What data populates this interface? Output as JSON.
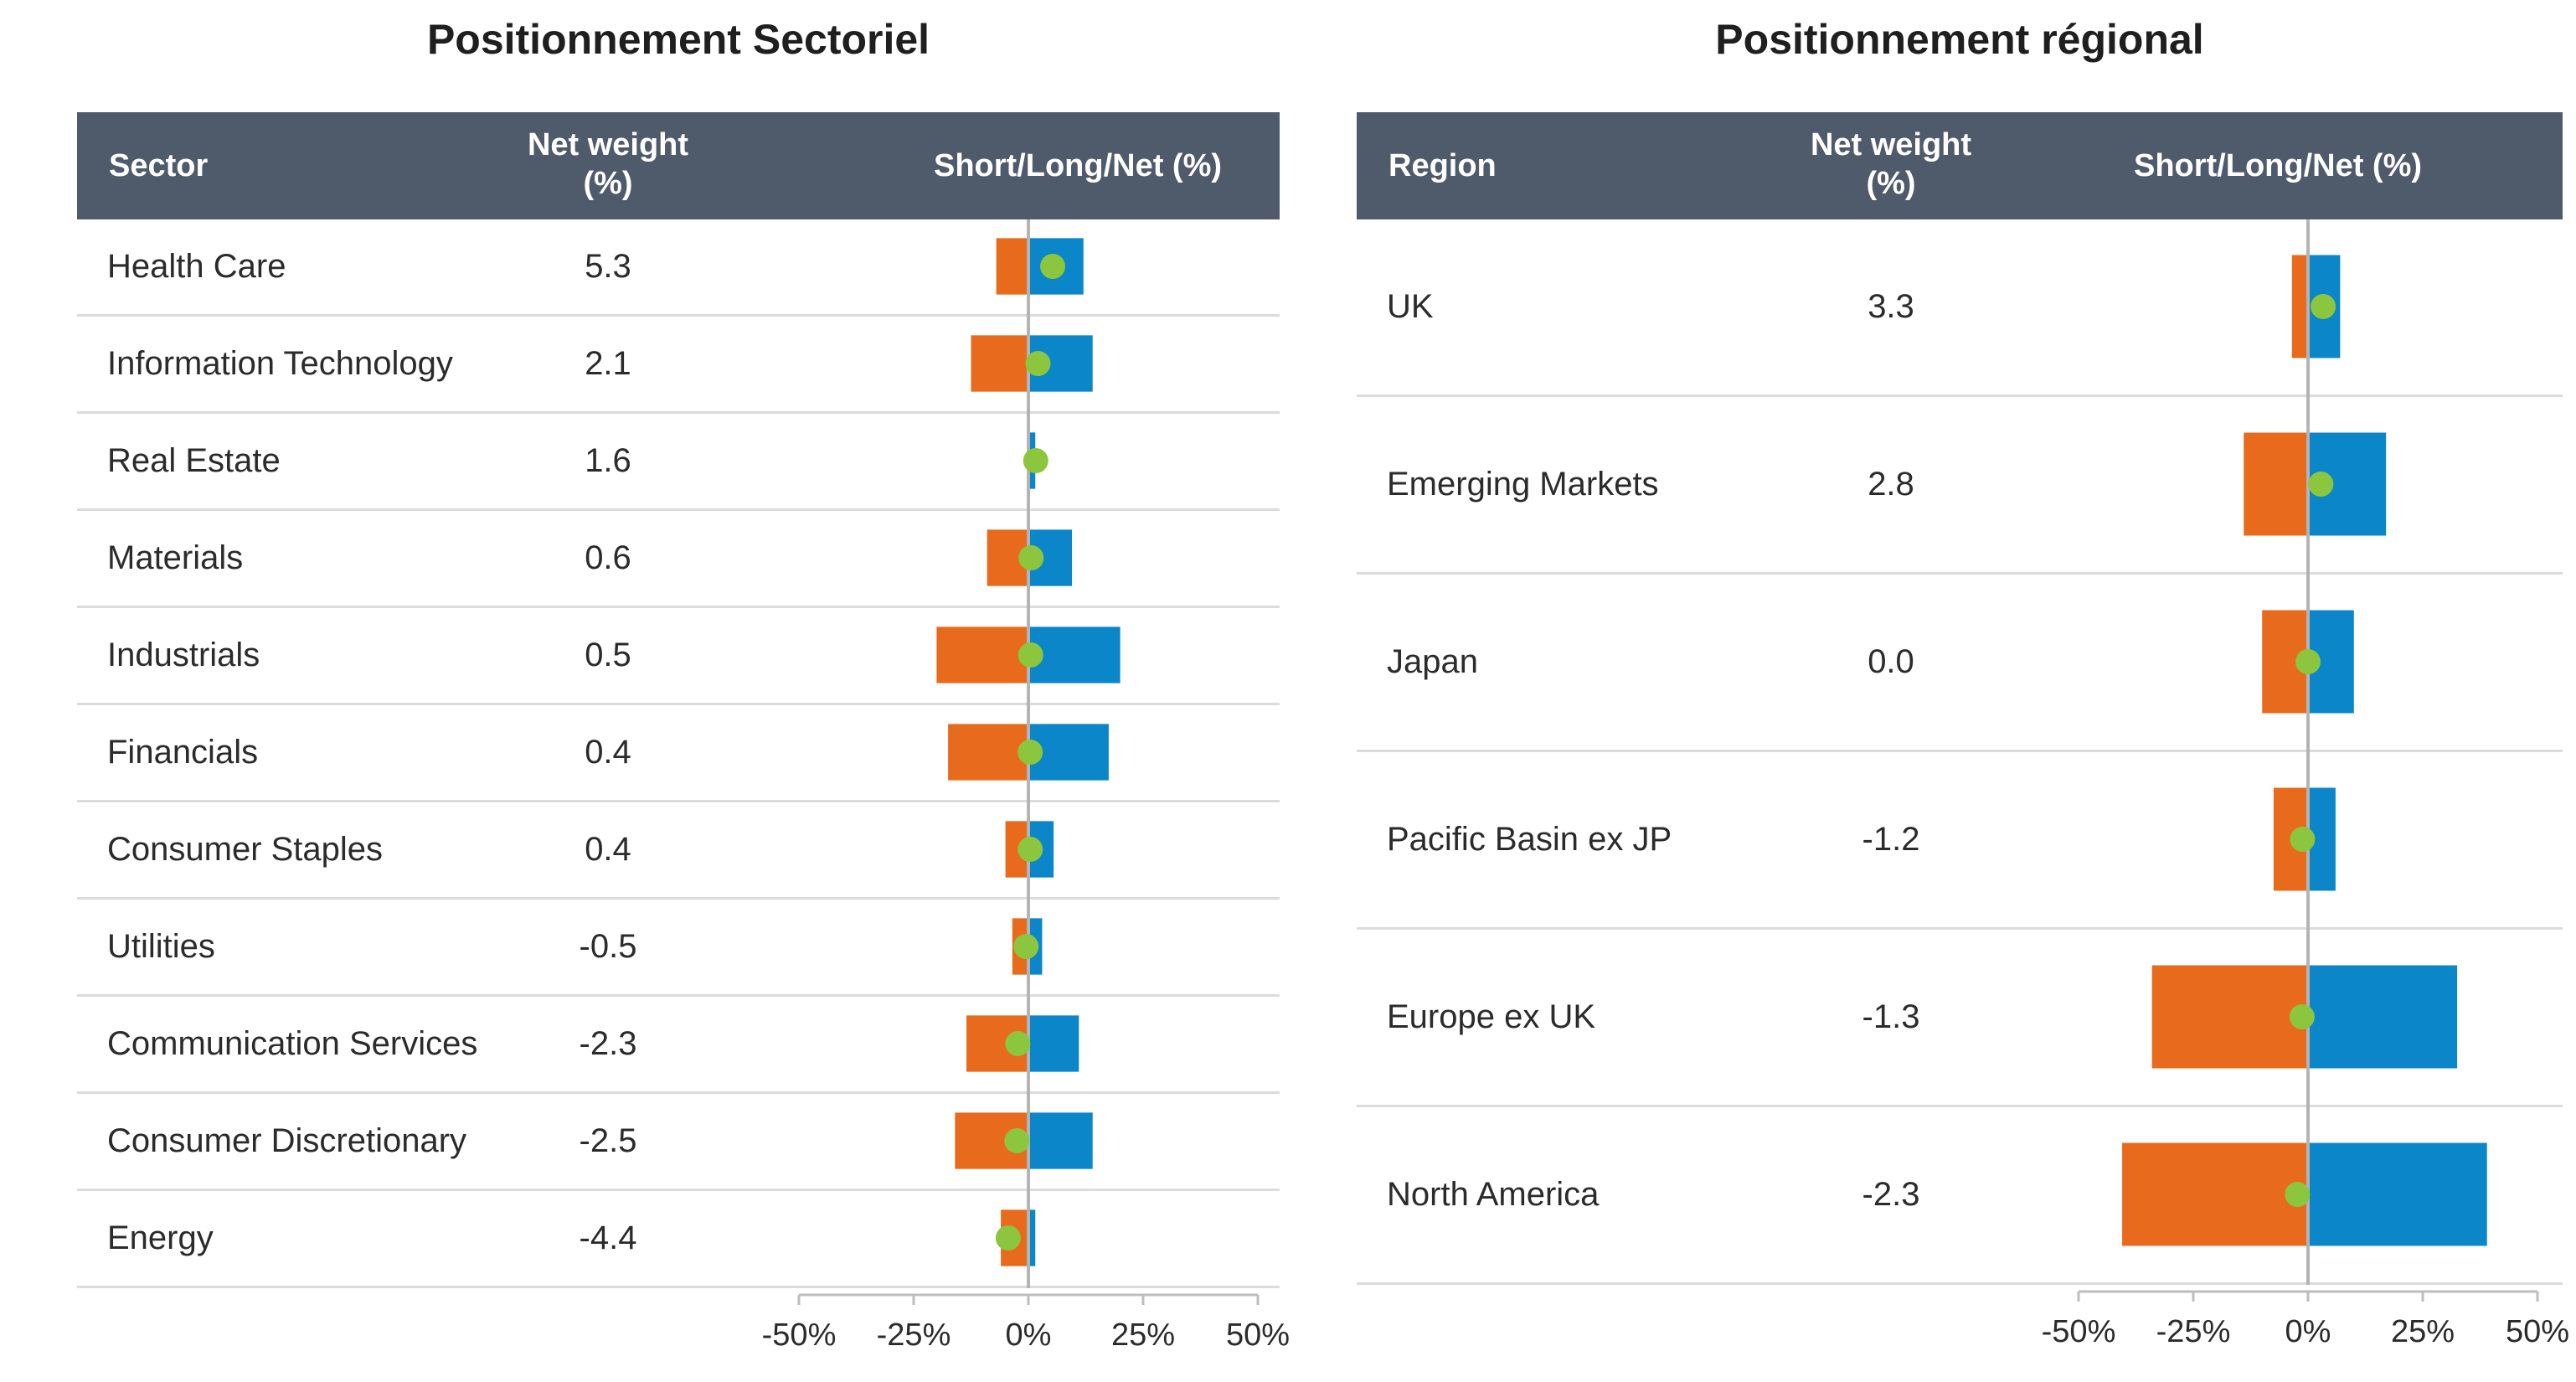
{
  "chart_data": [
    {
      "type": "bar",
      "title": "Positionnement Sectoriel",
      "columns": {
        "label": "Sector",
        "weight": "Net weight (%)",
        "chart": "Short/Long/Net (%)"
      },
      "weight_line1": "Net weight",
      "weight_line2": "(%)",
      "xlim": [
        -50,
        50
      ],
      "xticks": [
        -50,
        -25,
        0,
        25,
        50
      ],
      "xtick_labels": [
        "-50%",
        "-25%",
        "0%",
        "25%",
        "50%"
      ],
      "legend_series": [
        "Short",
        "Long",
        "Net"
      ],
      "colors": {
        "short": "#e86a1c",
        "long": "#0b86c9",
        "net": "#8cc63f"
      },
      "categories": [
        "Health Care",
        "Information Technology",
        "Real Estate",
        "Materials",
        "Industrials",
        "Financials",
        "Consumer Staples",
        "Utilities",
        "Communication Services",
        "Consumer Discretionary",
        "Energy"
      ],
      "net_weight_labels": [
        "5.3",
        "2.1",
        "1.6",
        "0.6",
        "0.5",
        "0.4",
        "0.4",
        "-0.5",
        "-2.3",
        "-2.5",
        "-4.4"
      ],
      "series": [
        {
          "name": "Short",
          "values": [
            -7,
            -12.5,
            0,
            -9,
            -20,
            -17.5,
            -5,
            -3.5,
            -13.5,
            -16,
            -6
          ]
        },
        {
          "name": "Long",
          "values": [
            12,
            14,
            1.5,
            9.5,
            20,
            17.5,
            5.5,
            3,
            11,
            14,
            1.5
          ]
        },
        {
          "name": "Net",
          "values": [
            5.3,
            2.1,
            1.6,
            0.6,
            0.5,
            0.4,
            0.4,
            -0.5,
            -2.3,
            -2.5,
            -4.4
          ]
        }
      ]
    },
    {
      "type": "bar",
      "title": "Positionnement régional",
      "columns": {
        "label": "Region",
        "weight": "Net weight (%)",
        "chart": "Short/Long/Net (%)"
      },
      "weight_line1": "Net weight",
      "weight_line2": "(%)",
      "xlim": [
        -50,
        50
      ],
      "xticks": [
        -50,
        -25,
        0,
        25,
        50
      ],
      "xtick_labels": [
        "-50%",
        "-25%",
        "0%",
        "25%",
        "50%"
      ],
      "legend_series": [
        "Short",
        "Long",
        "Net"
      ],
      "colors": {
        "short": "#e86a1c",
        "long": "#0b86c9",
        "net": "#8cc63f"
      },
      "categories": [
        "UK",
        "Emerging Markets",
        "Japan",
        "Pacific Basin ex JP",
        "Europe ex UK",
        "North America"
      ],
      "net_weight_labels": [
        "3.3",
        "2.8",
        "0.0",
        "-1.2",
        "-1.3",
        "-2.3"
      ],
      "series": [
        {
          "name": "Short",
          "values": [
            -3.5,
            -14,
            -10,
            -7.5,
            -34,
            -40.5
          ]
        },
        {
          "name": "Long",
          "values": [
            7,
            17,
            10,
            6,
            32.5,
            39
          ]
        },
        {
          "name": "Net",
          "values": [
            3.3,
            2.8,
            0.0,
            -1.2,
            -1.3,
            -2.3
          ]
        }
      ]
    }
  ]
}
